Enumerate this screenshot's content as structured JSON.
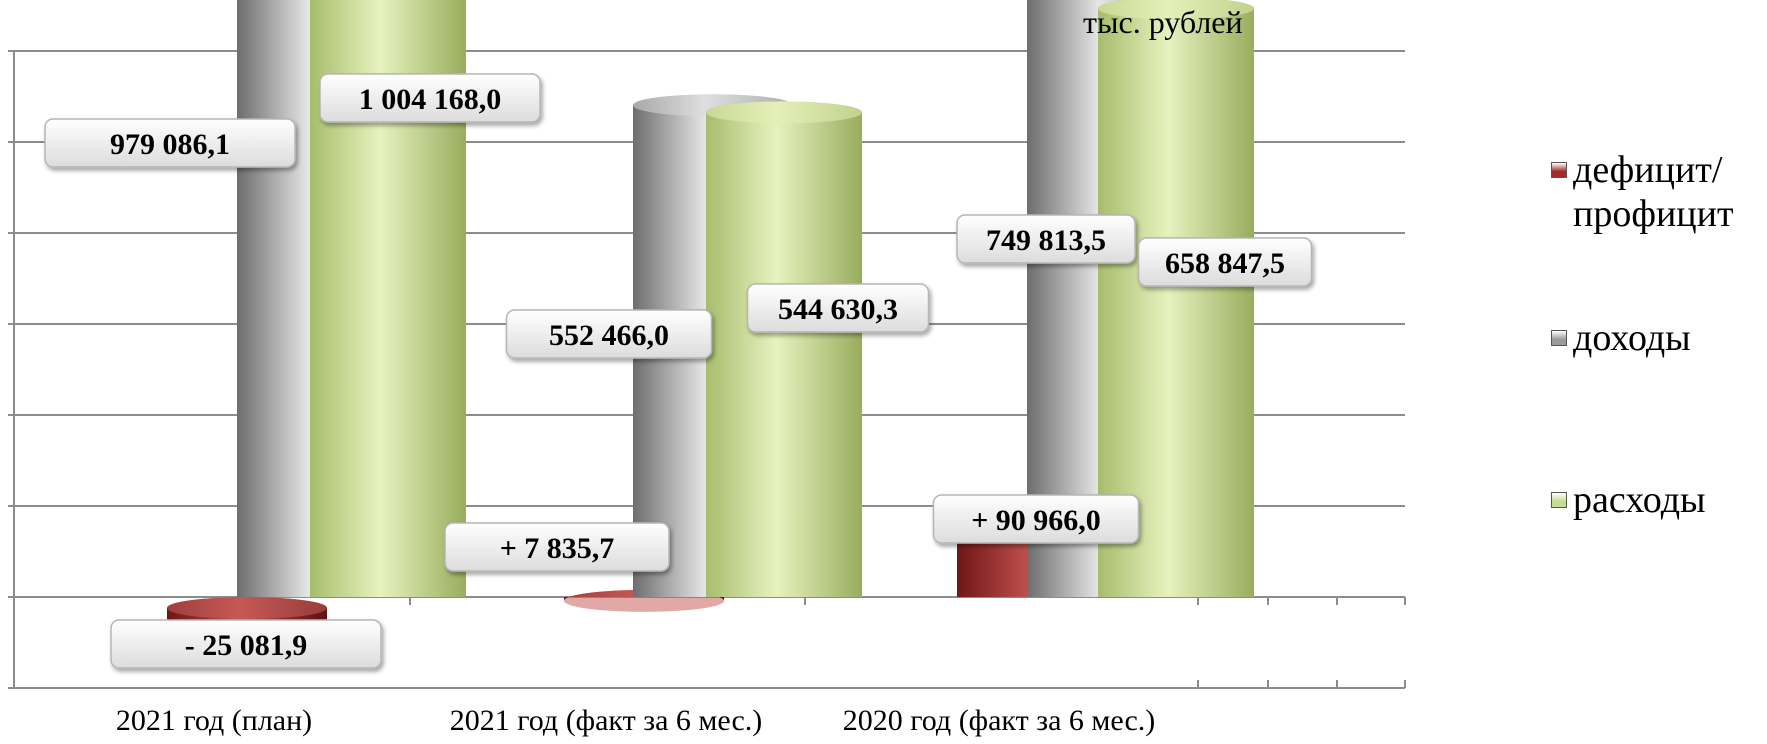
{
  "chart_data": {
    "type": "bar",
    "unit_label": "тыс. рублей",
    "categories": [
      "2021 год (план)",
      "2021 год (факт за 6 мес.)",
      "2020 год (факт за 6 мес.)"
    ],
    "series": [
      {
        "name": "дефицит/ профицит",
        "values": [
          -25081.9,
          7835.7,
          90966.0
        ],
        "labels": [
          "- 25 081,9",
          "+ 7 835,7",
          "+ 90 966,0"
        ],
        "color": "#a52a2a"
      },
      {
        "name": "доходы",
        "values": [
          979086.1,
          552466.0,
          749813.5
        ],
        "labels": [
          "979 086,1",
          "552 466,0",
          "749 813,5"
        ],
        "color": "#9a9a9a"
      },
      {
        "name": "расходы",
        "values": [
          1004168.0,
          544630.3,
          658847.5
        ],
        "labels": [
          "1 004 168,0",
          "544 630,3",
          "658 847,5"
        ],
        "color": "#c6dc8e"
      }
    ],
    "legend_position": "right",
    "grid": true
  }
}
